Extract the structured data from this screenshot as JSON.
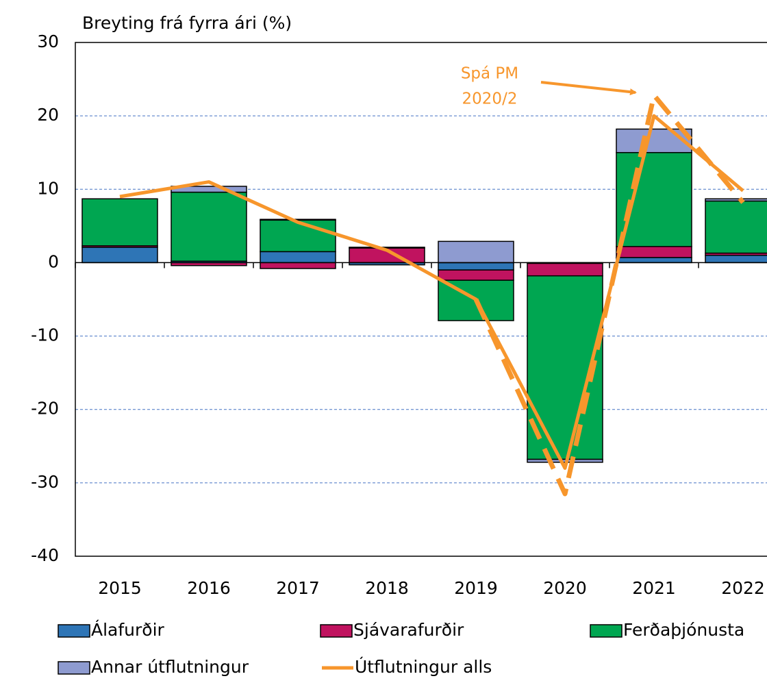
{
  "chart_data": {
    "type": "bar",
    "stacked": true,
    "y_axis_label": "Breyting frá fyrra ári (%)",
    "categories": [
      "2015",
      "2016",
      "2017",
      "2018",
      "2019",
      "2020",
      "2021",
      "2022"
    ],
    "series": [
      {
        "name": "Álafurðir",
        "color": "#2e75b6",
        "values": [
          2.1,
          0.2,
          1.5,
          -0.3,
          -1.0,
          -0.1,
          0.7,
          1.0
        ]
      },
      {
        "name": "Sjávarafurðir",
        "color": "#c0135f",
        "values": [
          0.2,
          -0.4,
          -0.8,
          2.0,
          -1.4,
          -1.7,
          1.5,
          0.3
        ]
      },
      {
        "name": "Ferðaþjónusta",
        "color": "#00a651",
        "values": [
          6.4,
          9.4,
          4.3,
          0.1,
          -5.5,
          -25.0,
          12.8,
          7.1
        ]
      },
      {
        "name": "Annar útflutningur",
        "color": "#8e9bd0",
        "values": [
          0,
          0.8,
          0.1,
          0,
          2.9,
          -0.4,
          3.2,
          0.3
        ]
      }
    ],
    "lines": [
      {
        "name": "Útflutningur alls",
        "color": "#f7962c",
        "values": [
          9.0,
          11.0,
          5.5,
          1.7,
          -5.0,
          -28.0,
          20.0,
          9.8
        ]
      },
      {
        "annotation": [
          "Spá PM",
          "2020/2"
        ],
        "color": "#f7962c",
        "dashed": true,
        "values": [
          null,
          null,
          null,
          null,
          -5.0,
          -31.5,
          22.8,
          8.2
        ]
      }
    ],
    "ylim": [
      -40,
      30
    ],
    "yticks": [
      -40,
      -30,
      -20,
      -10,
      0,
      10,
      20,
      30
    ],
    "grid": true
  }
}
